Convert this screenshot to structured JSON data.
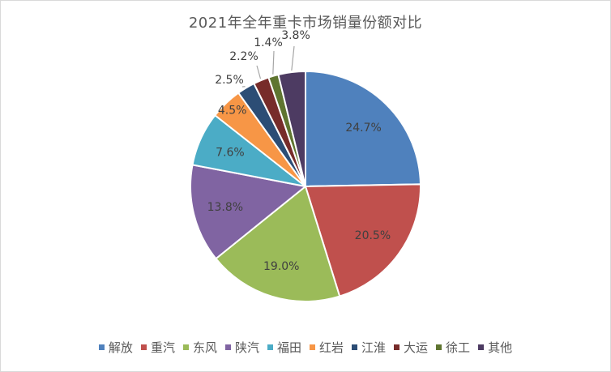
{
  "chart_data": {
    "type": "pie",
    "title": "2021年全年重卡市场销量份额对比",
    "categories": [
      "解放",
      "重汽",
      "东风",
      "陕汽",
      "福田",
      "红岩",
      "江淮",
      "大运",
      "徐工",
      "其他"
    ],
    "values": [
      24.7,
      20.5,
      19.0,
      13.8,
      7.6,
      4.5,
      2.5,
      2.2,
      1.4,
      3.8
    ],
    "labels": [
      "24.7%",
      "20.5%",
      "19.0%",
      "13.8%",
      "7.6%",
      "4.5%",
      "2.5%",
      "2.2%",
      "1.4%",
      "3.8%"
    ],
    "colors": [
      "#4f81bd",
      "#c0504d",
      "#9bbb59",
      "#8064a2",
      "#4bacc6",
      "#f79646",
      "#2c4d75",
      "#772c2a",
      "#5f7530",
      "#4d3b62"
    ],
    "start": "12 o'clock, clockwise",
    "legend_position": "bottom"
  }
}
